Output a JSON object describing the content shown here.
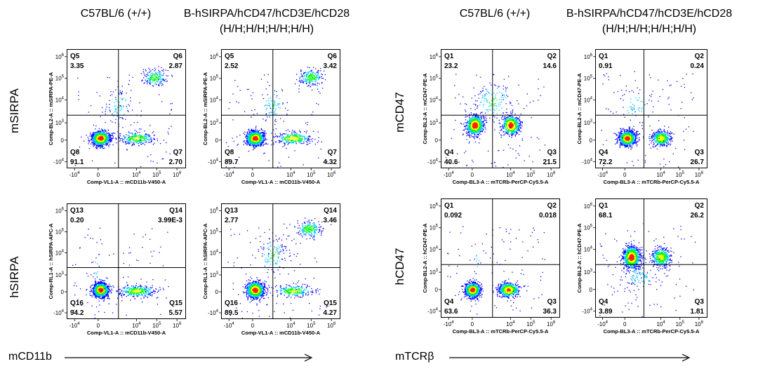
{
  "headers": {
    "left_wt": "C57BL/6 (+/+)",
    "left_ko_line1": "B-hSIRPA/hCD47/hCD3E/hCD28",
    "left_ko_line2": "(H/H;H/H;H/H;H/H)",
    "right_wt": "C57BL/6 (+/+)",
    "right_ko_line1": "B-hSIRPA/hCD47/hCD3E/hCD28",
    "right_ko_line2": "(H/H;H/H;H/H;H/H)"
  },
  "row_labels": {
    "msirpa": "mSIRPA",
    "hsirpa": "hSIRPA",
    "mcd47": "mCD47",
    "hcd47": "hCD47"
  },
  "bottom_labels": {
    "left": "mCD11b",
    "right": "mTCRβ"
  },
  "colors": {
    "density_low": "#0000ff",
    "density_mid": "#00c8ff",
    "density_high1": "#00ff00",
    "density_high2": "#ffff00",
    "density_peak": "#ff2000",
    "gate_line": "#000000"
  },
  "chart_data": [
    {
      "type": "scatter",
      "panel": "mSIRPA / C57BL/6 (+/+)",
      "xlabel": "Comp-VL1-A :: mCD11b-V450-A",
      "ylabel": "Comp-BL2-A :: mSIRPA-PE-A",
      "x_ticks": [
        "-10^4",
        "0",
        "10^4",
        "10^5",
        "10^6"
      ],
      "y_ticks": [
        "-10^4",
        "0",
        "10^3",
        "10^4",
        "10^5",
        "10^6"
      ],
      "quadrants": [
        {
          "name": "Q5",
          "value": "3.35",
          "position": "top-left"
        },
        {
          "name": "Q6",
          "value": "2.87",
          "position": "top-right"
        },
        {
          "name": "Q7",
          "value": "2.70",
          "position": "bottom-right"
        },
        {
          "name": "Q8",
          "value": "91.1",
          "position": "bottom-left"
        }
      ],
      "populations": [
        {
          "x": 0.2,
          "y": 0.1,
          "spread": [
            0.35,
            0.3
          ],
          "weight": 5
        },
        {
          "x": 1.8,
          "y": 0.1,
          "spread": [
            0.7,
            0.25
          ],
          "weight": 1.2
        },
        {
          "x": 2.6,
          "y": 2.9,
          "spread": [
            0.45,
            0.35
          ],
          "weight": 0.9
        },
        {
          "x": 1.0,
          "y": 1.6,
          "spread": [
            0.6,
            0.8
          ],
          "weight": 0.4
        }
      ]
    },
    {
      "type": "scatter",
      "panel": "mSIRPA / B-hSIRPA/hCD47/hCD3E/hCD28",
      "xlabel": "Comp-VL1-A :: mCD11b-V450-A",
      "ylabel": "Comp-BL2-A :: mSIRPA-PE-A",
      "x_ticks": [
        "-10^4",
        "0",
        "10^4",
        "10^5",
        "10^6"
      ],
      "y_ticks": [
        "-10^4",
        "0",
        "10^3",
        "10^4",
        "10^5",
        "10^6"
      ],
      "quadrants": [
        {
          "name": "Q5",
          "value": "2.52",
          "position": "top-left"
        },
        {
          "name": "Q6",
          "value": "3.42",
          "position": "top-right"
        },
        {
          "name": "Q7",
          "value": "4.32",
          "position": "bottom-right"
        },
        {
          "name": "Q8",
          "value": "89.7",
          "position": "bottom-left"
        }
      ],
      "populations": [
        {
          "x": 0.2,
          "y": 0.1,
          "spread": [
            0.35,
            0.3
          ],
          "weight": 5
        },
        {
          "x": 1.9,
          "y": 0.1,
          "spread": [
            0.7,
            0.25
          ],
          "weight": 1.4
        },
        {
          "x": 2.7,
          "y": 2.9,
          "spread": [
            0.45,
            0.35
          ],
          "weight": 1.0
        },
        {
          "x": 1.0,
          "y": 1.6,
          "spread": [
            0.6,
            0.8
          ],
          "weight": 0.4
        }
      ]
    },
    {
      "type": "scatter",
      "panel": "hSIRPA / C57BL/6 (+/+)",
      "xlabel": "Comp-VL1-A :: mCD11b-V450-A",
      "ylabel": "Comp-RL1-A :: hSIRPA-APC-A",
      "x_ticks": [
        "-10^4",
        "0",
        "10^4",
        "10^5",
        "10^6"
      ],
      "y_ticks": [
        "-10^4",
        "0",
        "10^3",
        "10^4",
        "10^5",
        "10^6"
      ],
      "quadrants": [
        {
          "name": "Q13",
          "value": "0.20",
          "position": "top-left"
        },
        {
          "name": "Q14",
          "value": "3.99E-3",
          "position": "top-right"
        },
        {
          "name": "Q15",
          "value": "5.57",
          "position": "bottom-right"
        },
        {
          "name": "Q16",
          "value": "94.2",
          "position": "bottom-left"
        }
      ],
      "populations": [
        {
          "x": 0.2,
          "y": 0.1,
          "spread": [
            0.3,
            0.3
          ],
          "weight": 5
        },
        {
          "x": 1.8,
          "y": 0.05,
          "spread": [
            0.75,
            0.25
          ],
          "weight": 1.3
        },
        {
          "x": 0.0,
          "y": 1.2,
          "spread": [
            0.15,
            0.8
          ],
          "weight": 0.05
        }
      ]
    },
    {
      "type": "scatter",
      "panel": "hSIRPA / B-hSIRPA/hCD47/hCD3E/hCD28",
      "xlabel": "Comp-VL1-A :: mCD11b-V450-A",
      "ylabel": "Comp-RL1-A :: hSIRPA-APC-A",
      "x_ticks": [
        "-10^4",
        "0",
        "10^4",
        "10^5",
        "10^6"
      ],
      "y_ticks": [
        "-10^4",
        "0",
        "10^3",
        "10^4",
        "10^5",
        "10^6"
      ],
      "quadrants": [
        {
          "name": "Q13",
          "value": "2.77",
          "position": "top-left"
        },
        {
          "name": "Q14",
          "value": "3.46",
          "position": "top-right"
        },
        {
          "name": "Q15",
          "value": "4.27",
          "position": "bottom-right"
        },
        {
          "name": "Q16",
          "value": "89.5",
          "position": "bottom-left"
        }
      ],
      "populations": [
        {
          "x": 0.2,
          "y": 0.1,
          "spread": [
            0.35,
            0.35
          ],
          "weight": 5
        },
        {
          "x": 1.9,
          "y": 0.05,
          "spread": [
            0.75,
            0.25
          ],
          "weight": 1.2
        },
        {
          "x": 2.6,
          "y": 3.0,
          "spread": [
            0.5,
            0.35
          ],
          "weight": 1.0
        },
        {
          "x": 1.0,
          "y": 1.8,
          "spread": [
            0.6,
            0.8
          ],
          "weight": 0.6
        }
      ]
    },
    {
      "type": "scatter",
      "panel": "mCD47 / C57BL/6 (+/+)",
      "xlabel": "Comp-BL3-A :: mTCRb-PerCP-Cy5.5-A",
      "ylabel": "Comp-BL2-A :: mCD47-PE-A",
      "x_ticks": [
        "-10^4",
        "0",
        "10^4",
        "10^5",
        "10^6"
      ],
      "y_ticks": [
        "-10^4",
        "0",
        "10^3",
        "10^4",
        "10^5",
        "10^6"
      ],
      "quadrants": [
        {
          "name": "Q1",
          "value": "23.2",
          "position": "top-left"
        },
        {
          "name": "Q2",
          "value": "14.6",
          "position": "top-right"
        },
        {
          "name": "Q3",
          "value": "21.5",
          "position": "bottom-right"
        },
        {
          "name": "Q4",
          "value": "40.6",
          "position": "bottom-left"
        }
      ],
      "populations": [
        {
          "x": 0.2,
          "y": 0.7,
          "spread": [
            0.35,
            0.4
          ],
          "weight": 3
        },
        {
          "x": 1.8,
          "y": 0.7,
          "spread": [
            0.35,
            0.4
          ],
          "weight": 2.2
        },
        {
          "x": 1.0,
          "y": 1.8,
          "spread": [
            0.9,
            0.9
          ],
          "weight": 0.5
        }
      ]
    },
    {
      "type": "scatter",
      "panel": "mCD47 / B-hSIRPA/hCD47/hCD3E/hCD28",
      "xlabel": "Comp-BL3-A :: mTCRb-PerCP-Cy5.5-A",
      "ylabel": "Comp-BL2-A :: mCD47-PE-A",
      "x_ticks": [
        "-10^4",
        "0",
        "10^4",
        "10^5",
        "10^6"
      ],
      "y_ticks": [
        "-10^4",
        "0",
        "10^3",
        "10^4",
        "10^5",
        "10^6"
      ],
      "quadrants": [
        {
          "name": "Q1",
          "value": "0.91",
          "position": "top-left"
        },
        {
          "name": "Q2",
          "value": "0.24",
          "position": "top-right"
        },
        {
          "name": "Q3",
          "value": "26.7",
          "position": "bottom-right"
        },
        {
          "name": "Q4",
          "value": "72.2",
          "position": "bottom-left"
        }
      ],
      "populations": [
        {
          "x": 0.2,
          "y": 0.1,
          "spread": [
            0.35,
            0.3
          ],
          "weight": 3.5
        },
        {
          "x": 1.8,
          "y": 0.1,
          "spread": [
            0.4,
            0.3
          ],
          "weight": 1.6
        },
        {
          "x": 0.6,
          "y": 1.6,
          "spread": [
            0.8,
            0.9
          ],
          "weight": 0.2
        }
      ]
    },
    {
      "type": "scatter",
      "panel": "hCD47 / C57BL/6 (+/+)",
      "xlabel": "Comp-BL3-A :: mTCRb-PerCP-Cy5.5-A",
      "ylabel": "Comp-BL2-A :: hCD47-PE-A",
      "x_ticks": [
        "-10^4",
        "0",
        "10^4",
        "10^5",
        "10^6"
      ],
      "y_ticks": [
        "-10^4",
        "0",
        "10^3",
        "10^4",
        "10^5",
        "10^6"
      ],
      "quadrants": [
        {
          "name": "Q1",
          "value": "0.092",
          "position": "top-left"
        },
        {
          "name": "Q2",
          "value": "0.018",
          "position": "top-right"
        },
        {
          "name": "Q3",
          "value": "36.3",
          "position": "bottom-right"
        },
        {
          "name": "Q4",
          "value": "63.6",
          "position": "bottom-left"
        }
      ],
      "populations": [
        {
          "x": 0.1,
          "y": 0.0,
          "spread": [
            0.3,
            0.3
          ],
          "weight": 3.2
        },
        {
          "x": 1.7,
          "y": 0.0,
          "spread": [
            0.4,
            0.3
          ],
          "weight": 1.9
        },
        {
          "x": 0.3,
          "y": 1.4,
          "spread": [
            0.2,
            0.8
          ],
          "weight": 0.04
        }
      ]
    },
    {
      "type": "scatter",
      "panel": "hCD47 / B-hSIRPA/hCD47/hCD3E/hCD28",
      "xlabel": "Comp-BL3-A :: mTCRb-PerCP-Cy5.5-A",
      "ylabel": "Comp-BL2-A :: hCD47-PE-A",
      "x_ticks": [
        "-10^4",
        "0",
        "10^4",
        "10^5",
        "10^6"
      ],
      "y_ticks": [
        "-10^4",
        "0",
        "10^3",
        "10^4",
        "10^5",
        "10^6"
      ],
      "quadrants": [
        {
          "name": "Q1",
          "value": "68.1",
          "position": "top-left"
        },
        {
          "name": "Q2",
          "value": "26.2",
          "position": "top-right"
        },
        {
          "name": "Q3",
          "value": "1.81",
          "position": "bottom-right"
        },
        {
          "name": "Q4",
          "value": "3.89",
          "position": "bottom-left"
        }
      ],
      "populations": [
        {
          "x": 0.4,
          "y": 1.5,
          "spread": [
            0.35,
            0.45
          ],
          "weight": 3.4
        },
        {
          "x": 1.8,
          "y": 1.5,
          "spread": [
            0.4,
            0.4
          ],
          "weight": 1.4
        },
        {
          "x": 0.8,
          "y": 0.6,
          "spread": [
            0.8,
            0.6
          ],
          "weight": 0.3
        }
      ]
    }
  ]
}
